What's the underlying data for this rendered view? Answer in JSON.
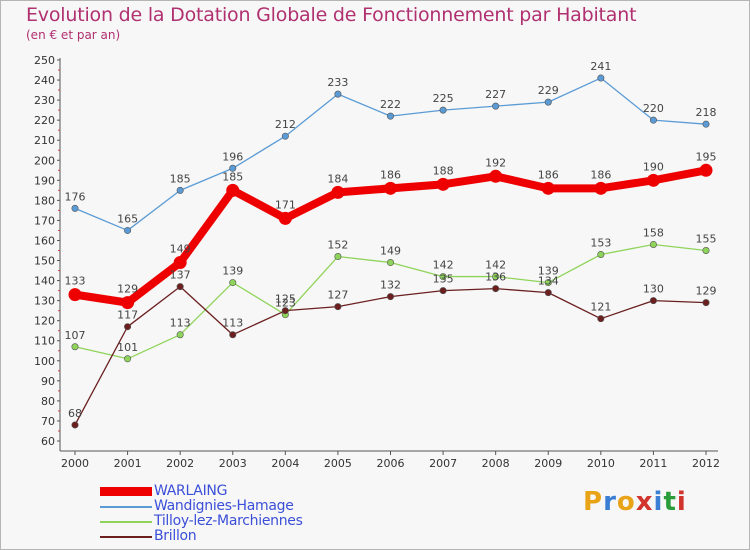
{
  "title": "Evolution de la Dotation Globale de Fonctionnement par Habitant",
  "subtitle": "(en € et par an)",
  "logo": {
    "text": "Proxiti",
    "colors": [
      "#e8a317",
      "#3a7fd4",
      "#e8a317",
      "#d0342c",
      "#3a7fd4",
      "#2a9d3a",
      "#d0342c"
    ]
  },
  "chart_data": {
    "type": "line",
    "title": "Evolution de la Dotation Globale de Fonctionnement par Habitant",
    "ylabel": "(en € et par an)",
    "x": [
      "2000",
      "2001",
      "2002",
      "2003",
      "2004",
      "2005",
      "2006",
      "2007",
      "2008",
      "2009",
      "2010",
      "2011",
      "2012"
    ],
    "ylim": [
      60,
      250
    ],
    "yticks": [
      "60",
      "70",
      "80",
      "90",
      "100",
      "110",
      "120",
      "130",
      "140",
      "150",
      "160",
      "170",
      "180",
      "190",
      "200",
      "210",
      "220",
      "230",
      "240",
      "250"
    ],
    "grid": false,
    "legend_position": "bottom-left",
    "series": [
      {
        "name": "WARLAING",
        "color": "#ee0000",
        "emphasis": "thick",
        "values": [
          133,
          129,
          149,
          185,
          171,
          184,
          186,
          188,
          192,
          186,
          186,
          190,
          195
        ]
      },
      {
        "name": "Wandignies-Hamage",
        "color": "#5b9bd5",
        "emphasis": "thin",
        "values": [
          176,
          165,
          185,
          196,
          212,
          233,
          222,
          225,
          227,
          229,
          241,
          220,
          218
        ]
      },
      {
        "name": "Tilloy-lez-Marchiennes",
        "color": "#8fd45a",
        "emphasis": "thin",
        "values": [
          107,
          101,
          113,
          139,
          123,
          152,
          149,
          142,
          142,
          139,
          153,
          158,
          155
        ]
      },
      {
        "name": "Brillon",
        "color": "#6b1f1f",
        "emphasis": "thin",
        "values": [
          68,
          117,
          137,
          113,
          125,
          127,
          132,
          135,
          136,
          134,
          121,
          130,
          129
        ]
      }
    ],
    "data_labels": [
      [
        "133",
        "129",
        "149",
        "185",
        "171",
        "184",
        "186",
        "188",
        "192",
        "186",
        "186",
        "190",
        "195"
      ],
      [
        "176",
        "165",
        "185",
        "196",
        "212",
        "233",
        "222",
        "225",
        "227",
        "229",
        "241",
        "220",
        "218"
      ],
      [
        "107",
        "101",
        "113",
        "139",
        "123",
        "152",
        "149",
        "142",
        "142",
        "139",
        "153",
        "158",
        "155"
      ],
      [
        "68",
        "117",
        "137",
        "113",
        "125",
        "127",
        "132",
        "135",
        "136",
        "134",
        "121",
        "130",
        "129"
      ]
    ]
  }
}
